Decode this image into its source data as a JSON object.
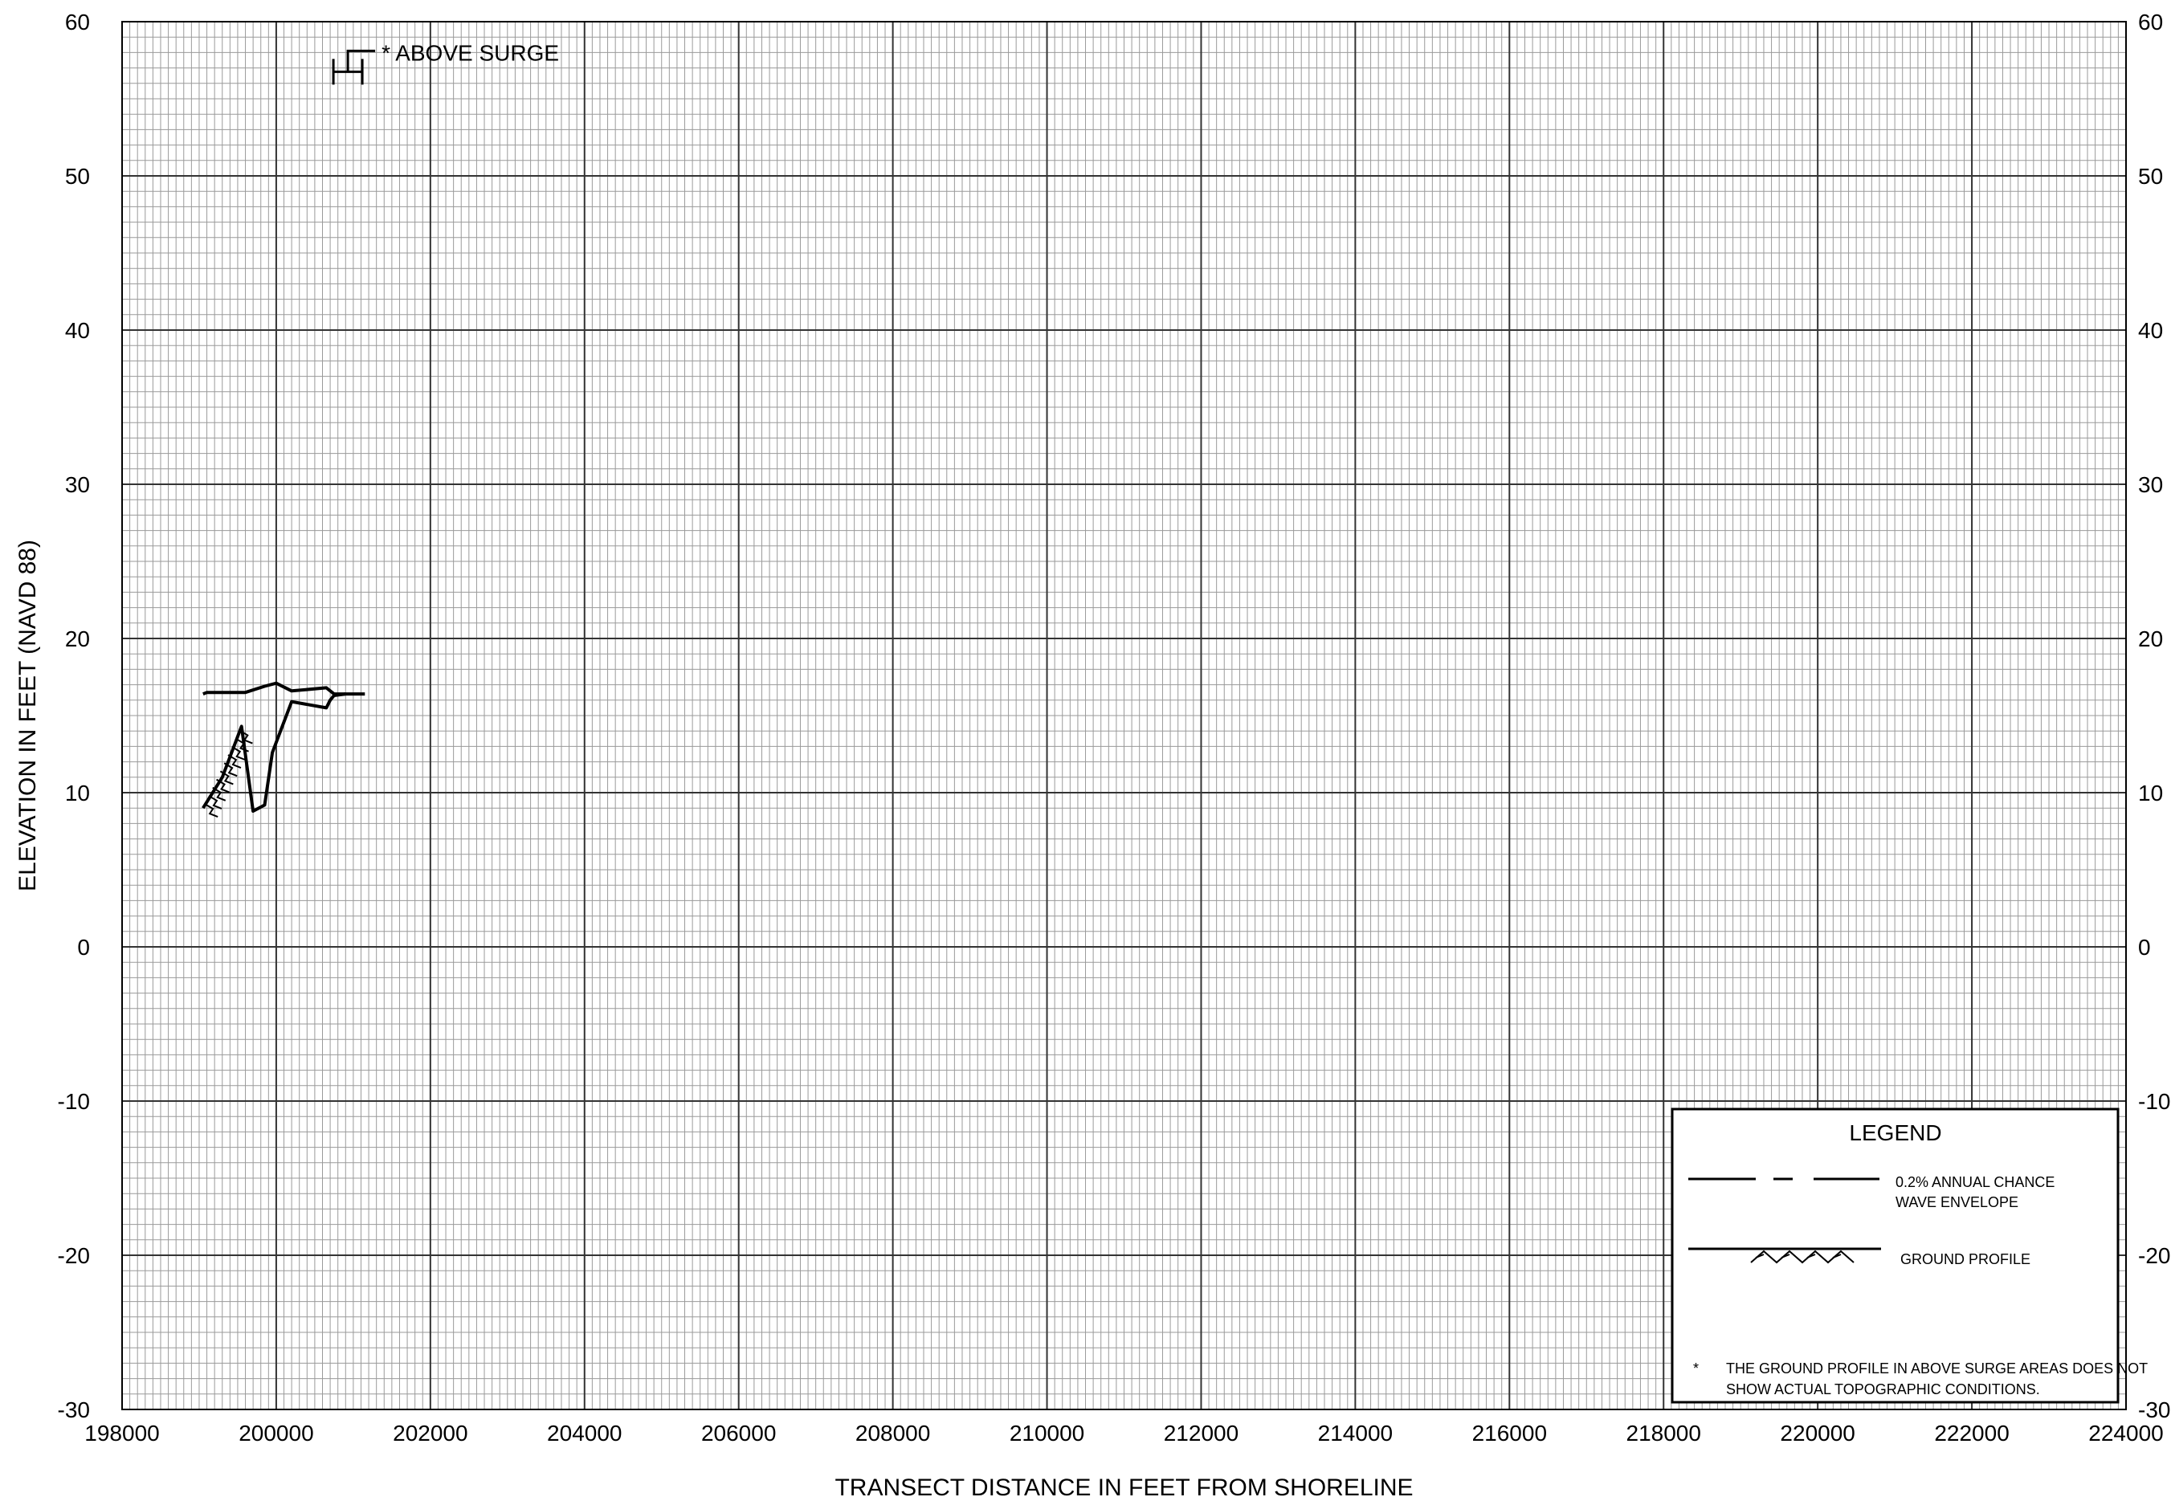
{
  "chart_data": {
    "type": "line",
    "xlabel": "TRANSECT DISTANCE IN FEET FROM SHORELINE",
    "ylabel": "ELEVATION IN FEET (NAVD 88)",
    "xlim": [
      198000,
      224000
    ],
    "ylim": [
      -30,
      60
    ],
    "x_ticks": [
      "198000",
      "200000",
      "202000",
      "204000",
      "206000",
      "208000",
      "210000",
      "212000",
      "214000",
      "216000",
      "218000",
      "220000",
      "222000",
      "224000"
    ],
    "y_ticks": [
      "60",
      "50",
      "40",
      "30",
      "20",
      "10",
      "0",
      "-10",
      "-20",
      "-30"
    ],
    "grid": true,
    "legend_placement": "bottom-right",
    "series": [
      {
        "name": "0.2% ANNUAL CHANCE WAVE ENVELOPE",
        "x": [
          199050,
          199100,
          199400,
          199600,
          199850,
          200000,
          200200,
          200650,
          200750,
          200900,
          201150
        ],
        "y": [
          16.4,
          16.5,
          16.5,
          16.5,
          16.9,
          17.1,
          16.6,
          16.8,
          16.4,
          16.4,
          16.4
        ]
      },
      {
        "name": "GROUND PROFILE",
        "x": [
          199050,
          199300,
          199550,
          199700,
          199850,
          199950,
          200200,
          200650,
          200700,
          200750,
          200900
        ],
        "y": [
          9.0,
          11.0,
          14.3,
          8.8,
          9.2,
          12.6,
          15.9,
          15.5,
          16.0,
          16.3,
          16.4
        ]
      }
    ],
    "annotations": [
      {
        "text": "* ABOVE SURGE",
        "x": 200950,
        "y": 58.0
      }
    ],
    "legend": {
      "title": "LEGEND",
      "entries": [
        {
          "line1": "0.2% ANNUAL CHANCE",
          "line2": "WAVE ENVELOPE"
        },
        {
          "line1": "GROUND PROFILE"
        }
      ],
      "footnote_mark": "*",
      "footnote_line1": "THE GROUND PROFILE IN ABOVE SURGE AREAS DOES NOT",
      "footnote_line2": "SHOW ACTUAL TOPOGRAPHIC CONDITIONS."
    }
  }
}
